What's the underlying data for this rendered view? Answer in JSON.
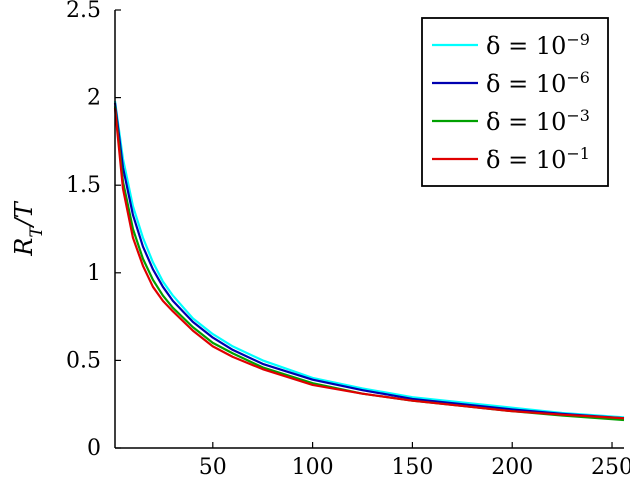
{
  "chart_data": {
    "type": "line",
    "title": "",
    "xlabel": "",
    "ylabel": "R_T/T",
    "xlim": [
      1,
      256
    ],
    "ylim": [
      0,
      2.5
    ],
    "xticks": [
      50,
      100,
      150,
      200,
      250
    ],
    "xtick_labels": [
      "50",
      "100",
      "150",
      "200",
      "250"
    ],
    "yticks": [
      0,
      0.5,
      1,
      1.5,
      2,
      2.5
    ],
    "ytick_labels": [
      "0",
      "0.5",
      "1",
      "1.5",
      "2",
      "2.5"
    ],
    "grid": false,
    "legend_position": "top-right",
    "series": [
      {
        "name": "δ = 10^−9",
        "color": "#00ffff",
        "x": [
          1,
          5,
          10,
          15,
          20,
          25,
          30,
          40,
          50,
          60,
          75,
          100,
          125,
          150,
          175,
          200,
          225,
          256
        ],
        "y": [
          1.98,
          1.65,
          1.38,
          1.2,
          1.06,
          0.95,
          0.87,
          0.74,
          0.65,
          0.58,
          0.5,
          0.4,
          0.34,
          0.29,
          0.26,
          0.23,
          0.2,
          0.175
        ]
      },
      {
        "name": "δ = 10^−6",
        "color": "#0000b0",
        "x": [
          1,
          5,
          10,
          15,
          20,
          25,
          30,
          40,
          50,
          60,
          75,
          100,
          125,
          150,
          175,
          200,
          225,
          256
        ],
        "y": [
          1.97,
          1.6,
          1.33,
          1.15,
          1.02,
          0.92,
          0.84,
          0.72,
          0.63,
          0.56,
          0.48,
          0.39,
          0.33,
          0.28,
          0.25,
          0.22,
          0.195,
          0.17
        ]
      },
      {
        "name": "δ = 10^−3",
        "color": "#00a000",
        "x": [
          1,
          5,
          10,
          15,
          20,
          25,
          30,
          40,
          50,
          60,
          75,
          100,
          125,
          150,
          175,
          200,
          225,
          256
        ],
        "y": [
          1.95,
          1.52,
          1.25,
          1.08,
          0.96,
          0.87,
          0.8,
          0.69,
          0.6,
          0.54,
          0.46,
          0.37,
          0.31,
          0.27,
          0.24,
          0.21,
          0.185,
          0.16
        ]
      },
      {
        "name": "δ = 10^−1",
        "color": "#e00000",
        "x": [
          1,
          5,
          10,
          15,
          20,
          25,
          30,
          40,
          50,
          60,
          75,
          100,
          125,
          150,
          175,
          200,
          225,
          256
        ],
        "y": [
          1.94,
          1.48,
          1.2,
          1.04,
          0.92,
          0.84,
          0.78,
          0.67,
          0.58,
          0.52,
          0.45,
          0.36,
          0.31,
          0.27,
          0.24,
          0.21,
          0.19,
          0.17
        ]
      }
    ]
  }
}
